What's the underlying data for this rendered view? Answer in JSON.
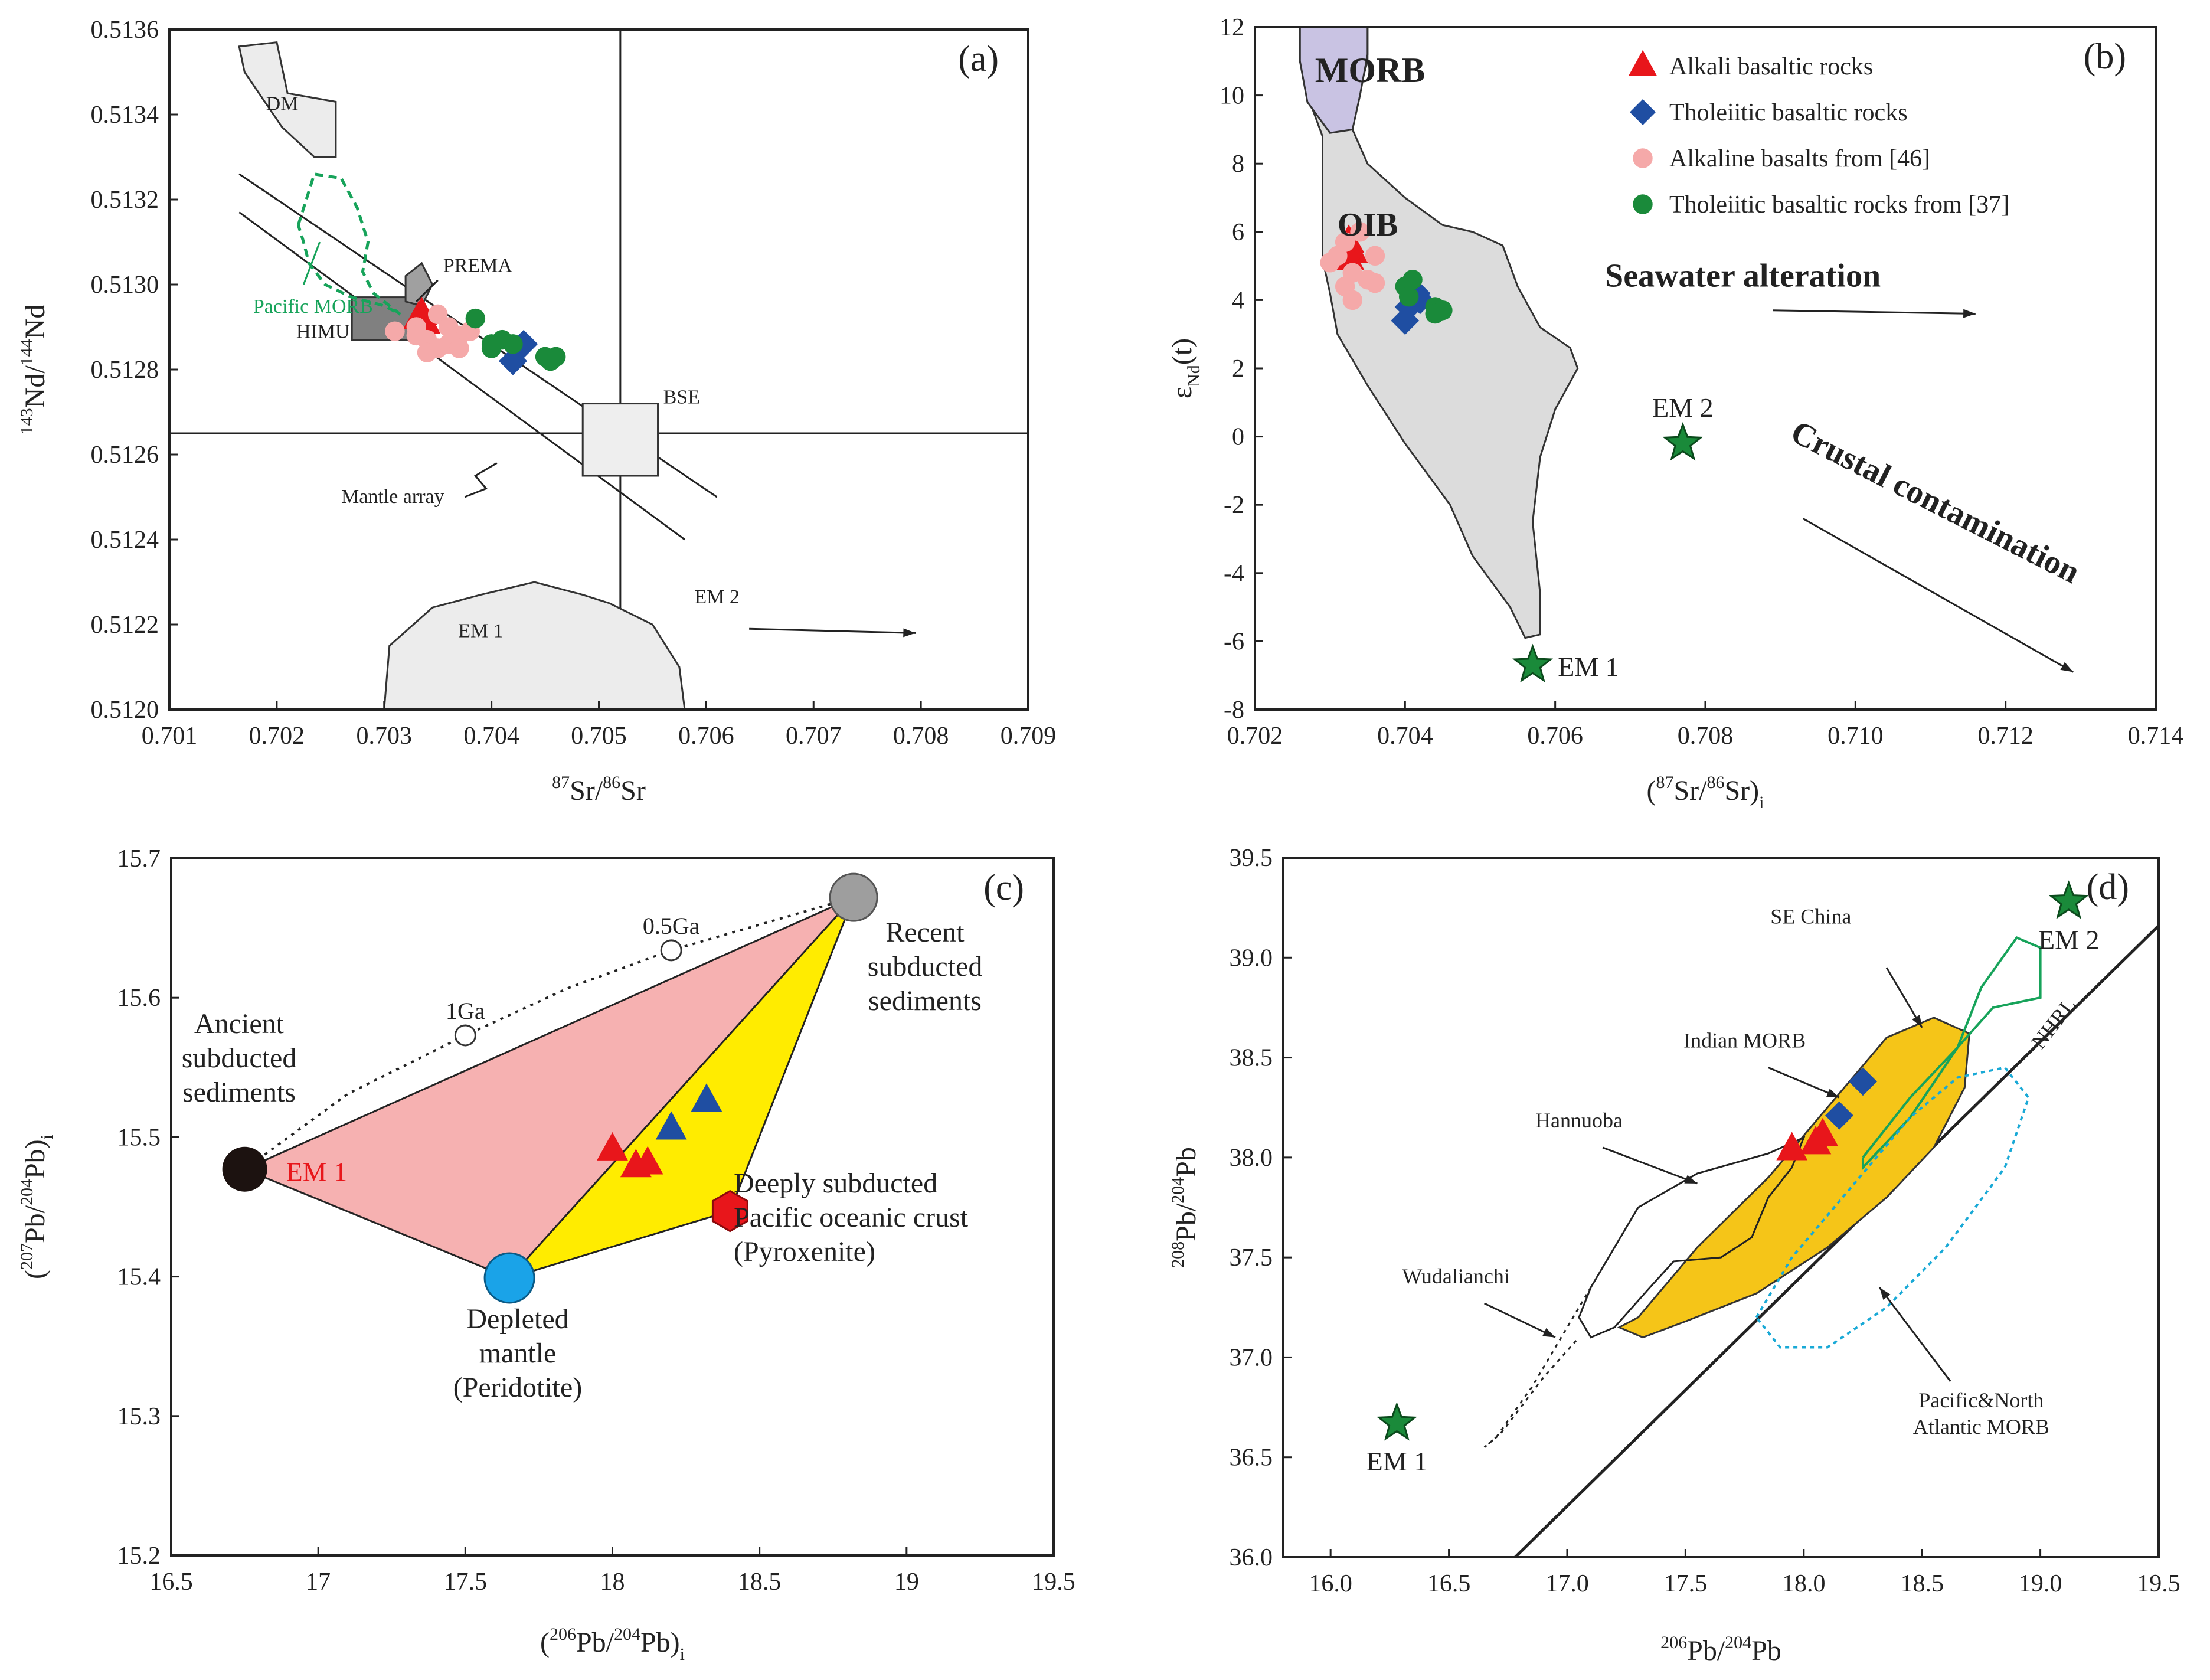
{
  "chart_data": [
    {
      "panel_label": "(a)",
      "type": "scatter",
      "xlabel_main": "Sr/",
      "xlabel_sup1": "87",
      "xlabel_sup2": "86",
      "xlabel_end": "Sr",
      "ylabel_main": "Nd/",
      "ylabel_sup1": "143",
      "ylabel_sup2": "144",
      "ylabel_end": "Nd",
      "xlim": [
        0.701,
        0.709
      ],
      "ylim": [
        0.512,
        0.5136
      ],
      "xticks": [
        "0.701",
        "0.702",
        "0.703",
        "0.704",
        "0.705",
        "0.706",
        "0.707",
        "0.708",
        "0.709"
      ],
      "yticks": [
        "0.5120",
        "0.5122",
        "0.5124",
        "0.5126",
        "0.5128",
        "0.5130",
        "0.5132",
        "0.5134",
        "0.5136"
      ],
      "labels": {
        "dm": "DM",
        "prema": "PREMA",
        "pacific_morb": "Pacific MORB",
        "himu": "HIMU",
        "bse": "BSE",
        "mantle_array": "Mantle array",
        "em1": "EM 1",
        "em2": "EM 2"
      },
      "series": [
        {
          "marker": "triangle",
          "color": "#e8161b",
          "points": [
            [
              0.70335,
              0.51293
            ],
            [
              0.70338,
              0.51291
            ],
            [
              0.70332,
              0.51292
            ]
          ]
        },
        {
          "marker": "diamond",
          "color": "#1f4ea2",
          "points": [
            [
              0.7043,
              0.51286
            ],
            [
              0.7042,
              0.51282
            ]
          ]
        },
        {
          "marker": "circle",
          "color": "#f5a9a9",
          "points": [
            [
              0.7031,
              0.51289
            ],
            [
              0.7033,
              0.5129
            ],
            [
              0.7035,
              0.51293
            ],
            [
              0.7034,
              0.51287
            ],
            [
              0.7036,
              0.51286
            ],
            [
              0.7037,
              0.51288
            ],
            [
              0.7034,
              0.51284
            ],
            [
              0.7035,
              0.51285
            ],
            [
              0.7037,
              0.51285
            ],
            [
              0.7033,
              0.51288
            ],
            [
              0.7036,
              0.5129
            ],
            [
              0.7038,
              0.51289
            ]
          ]
        },
        {
          "marker": "circle",
          "color": "#1a8a3a",
          "points": [
            [
              0.70385,
              0.51292
            ],
            [
              0.704,
              0.51286
            ],
            [
              0.7041,
              0.51287
            ],
            [
              0.7042,
              0.51286
            ],
            [
              0.704,
              0.51285
            ],
            [
              0.7045,
              0.51283
            ],
            [
              0.7046,
              0.51283
            ],
            [
              0.70455,
              0.51282
            ]
          ]
        }
      ]
    },
    {
      "panel_label": "(b)",
      "type": "scatter",
      "xlabel_main": "Sr/",
      "xlabel_sup1": "87",
      "xlabel_sup2": "86",
      "xlabel_end": "Sr)",
      "xlabel_open": "(",
      "xlabel_sub": "i",
      "ylabel_main": "ε",
      "ylabel_sub": "Nd",
      "ylabel_end": "(t)",
      "xlim": [
        0.702,
        0.714
      ],
      "ylim": [
        -8,
        12
      ],
      "xticks": [
        "0.702",
        "0.704",
        "0.706",
        "0.708",
        "0.710",
        "0.712",
        "0.714"
      ],
      "yticks": [
        "-8",
        "-6",
        "-4",
        "-2",
        "0",
        "2",
        "4",
        "6",
        "8",
        "10",
        "12"
      ],
      "labels": {
        "morb": "MORB",
        "oib": "OIB",
        "seawater": "Seawater alteration",
        "crustal": "Crustal contamination",
        "em1": "EM 1",
        "em2": "EM 2"
      },
      "legend": [
        "Alkali basaltic rocks",
        "Tholeiitic basaltic rocks",
        "Alkaline  basalts from [46]",
        "Tholeiitic basaltic rocks from [37]"
      ],
      "legend_position": "top-right",
      "series": [
        {
          "name": "Alkali basaltic rocks",
          "marker": "triangle",
          "color": "#e8161b",
          "points": [
            [
              0.70325,
              5.7
            ],
            [
              0.7033,
              5.4
            ],
            [
              0.7032,
              5.5
            ],
            [
              0.70325,
              5.2
            ]
          ]
        },
        {
          "name": "Tholeiitic basaltic rocks",
          "marker": "diamond",
          "color": "#1f4ea2",
          "points": [
            [
              0.70415,
              4.2
            ],
            [
              0.70405,
              3.8
            ],
            [
              0.7042,
              4.0
            ],
            [
              0.704,
              3.4
            ]
          ]
        },
        {
          "name": "Alkaline  basalts from [46]",
          "marker": "circle",
          "color": "#f5a9a9",
          "points": [
            [
              0.703,
              5.1
            ],
            [
              0.7032,
              5.7
            ],
            [
              0.7034,
              6.0
            ],
            [
              0.7036,
              5.3
            ],
            [
              0.7033,
              4.8
            ],
            [
              0.7035,
              4.6
            ],
            [
              0.7032,
              4.4
            ],
            [
              0.7036,
              4.5
            ],
            [
              0.7033,
              4.0
            ],
            [
              0.7031,
              5.3
            ]
          ]
        },
        {
          "name": "Tholeiitic basaltic rocks from [37]",
          "marker": "circle",
          "color": "#1a8a3a",
          "points": [
            [
              0.704,
              4.4
            ],
            [
              0.7041,
              4.6
            ],
            [
              0.7044,
              3.8
            ],
            [
              0.7045,
              3.7
            ],
            [
              0.7044,
              3.6
            ],
            [
              0.70405,
              4.1
            ]
          ]
        }
      ],
      "stars": [
        {
          "label": "EM 1",
          "x": 0.7057,
          "y": -6.7
        },
        {
          "label": "EM 2",
          "x": 0.7077,
          "y": -0.2
        }
      ]
    },
    {
      "panel_label": "(c)",
      "type": "scatter",
      "xlabel_main": "Pb/",
      "xlabel_sup1": "206",
      "xlabel_sup2": "204",
      "xlabel_end": "Pb)",
      "xlabel_open": "(",
      "xlabel_sub": "i",
      "ylabel_main": "Pb/",
      "ylabel_sup1": "207",
      "ylabel_sup2": "204",
      "ylabel_end": "Pb)",
      "ylabel_open": "(",
      "ylabel_sub": "i",
      "xlim": [
        16.5,
        19.5
      ],
      "ylim": [
        15.2,
        15.7
      ],
      "xticks": [
        "16.5",
        "17",
        "17.5",
        "18",
        "18.5",
        "19",
        "19.5"
      ],
      "yticks": [
        "15.2",
        "15.3",
        "15.4",
        "15.5",
        "15.6",
        "15.7"
      ],
      "labels": {
        "em1": "EM 1",
        "ancient": [
          "Ancient",
          "subducted",
          "sediments"
        ],
        "recent": [
          "Recent",
          "subducted",
          "sediments"
        ],
        "depleted": [
          "Depleted",
          "mantle",
          "(Peridotite)"
        ],
        "deeply": [
          "Deeply subducted",
          "Pacific oceanic crust",
          "(Pyroxenite)"
        ],
        "age1": "1Ga",
        "age05": "0.5Ga"
      },
      "endmembers": {
        "em1": [
          16.75,
          15.477
        ],
        "recent": [
          18.82,
          15.672
        ],
        "depleted": [
          17.65,
          15.399
        ],
        "pyroxenite": [
          18.4,
          15.447
        ],
        "age1": [
          17.5,
          15.573
        ],
        "age05": [
          18.2,
          15.634
        ]
      },
      "series": [
        {
          "marker": "triangle",
          "color": "#e8161b",
          "points": [
            [
              18.0,
              15.491
            ],
            [
              18.08,
              15.479
            ],
            [
              18.12,
              15.481
            ]
          ]
        },
        {
          "marker": "triangle",
          "color": "#1f4ea2",
          "points": [
            [
              18.2,
              15.506
            ],
            [
              18.32,
              15.526
            ]
          ]
        }
      ]
    },
    {
      "panel_label": "(d)",
      "type": "scatter",
      "xlabel_main": "Pb/",
      "xlabel_sup1": "206",
      "xlabel_sup2": "204",
      "xlabel_end": "Pb",
      "ylabel_main": "Pb/",
      "ylabel_sup1": "208",
      "ylabel_sup2": "204",
      "ylabel_end": "Pb",
      "xlim": [
        15.8,
        19.5
      ],
      "ylim": [
        36.0,
        39.5
      ],
      "xticks": [
        "16.0",
        "16.5",
        "17.0",
        "17.5",
        "18.0",
        "18.5",
        "19.0",
        "19.5"
      ],
      "yticks": [
        "36.0",
        "36.5",
        "37.0",
        "37.5",
        "38.0",
        "38.5",
        "39.0",
        "39.5"
      ],
      "labels": {
        "se_china": "SE China",
        "indian": "Indian MORB",
        "hannuoba": "Hannuoba",
        "wudalianchi": "Wudalianchi",
        "pacific": [
          "Pacific&North",
          "Atlantic MORB"
        ],
        "nhrl": "NHRL",
        "em1": "EM 1",
        "em2": "EM 2"
      },
      "series": [
        {
          "marker": "triangle",
          "color": "#e8161b",
          "points": [
            [
              17.95,
              38.04
            ],
            [
              18.05,
              38.07
            ],
            [
              18.08,
              38.11
            ]
          ]
        },
        {
          "marker": "diamond",
          "color": "#1f4ea2",
          "points": [
            [
              18.15,
              38.21
            ],
            [
              18.25,
              38.38
            ]
          ]
        }
      ],
      "stars": [
        {
          "label": "EM 1",
          "x": 16.28,
          "y": 36.67
        },
        {
          "label": "EM 2",
          "x": 19.12,
          "y": 39.28
        }
      ]
    }
  ]
}
